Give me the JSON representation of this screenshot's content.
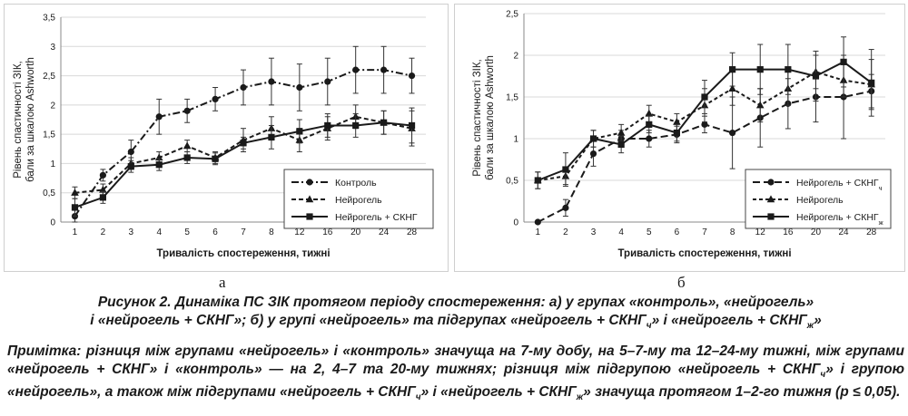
{
  "figure": {
    "caption_line1": "Рисунок 2. Динаміка ПС ЗІК протягом періоду спостереження: а) у групах «контроль», «нейрогель»",
    "caption_line2": "і «нейрогель + СКНГ»; б) у групі «нейрогель» та підгрупах «нейрогель + СКНГч» і «нейрогель + СКНГж»",
    "note": "Примітка: різниця між групами «нейрогель» і «контроль» значуща на 7-му добу, на 5–7-му та 12–24-му тижні, між групами «нейрогель + СКНГ» і «контроль» — на 2, 4–7 та 20-му тижнях; різниця між підгрупою «нейрогель + СКНГч» і групою «нейрогель», а також між підгрупами «нейрогель + СКНГч» і «нейрогель + СКНГж» значуща протягом 1–2-го тижня (p ≤ 0,05)."
  },
  "chart_data": [
    {
      "panel_label": "а",
      "type": "line",
      "x": [
        "1",
        "2",
        "3",
        "4",
        "5",
        "6",
        "7",
        "8",
        "12",
        "16",
        "20",
        "24",
        "28"
      ],
      "ylim": [
        0,
        3.5
      ],
      "yticks": [
        "0",
        "0,5",
        "1",
        "1,5",
        "2",
        "2,5",
        "3",
        "3,5"
      ],
      "xlabel": "Тривалість спостереження, тижні",
      "ylabel_line1": "Рівень спастичності ЗІК,",
      "ylabel_line2": "бали за шкалою Ashworth",
      "legend_position": "bottom-right",
      "series": [
        {
          "name": "Контроль",
          "marker": "circle",
          "dash": "8,3,2,3",
          "values": [
            0.1,
            0.8,
            1.2,
            1.8,
            1.9,
            2.1,
            2.3,
            2.4,
            2.3,
            2.4,
            2.6,
            2.6,
            2.5
          ],
          "errors": [
            0.1,
            0.1,
            0.2,
            0.3,
            0.2,
            0.2,
            0.3,
            0.4,
            0.4,
            0.4,
            0.4,
            0.4,
            0.3
          ]
        },
        {
          "name": "Нейрогель",
          "marker": "triangle",
          "dash": "5,3",
          "values": [
            0.5,
            0.55,
            1.0,
            1.1,
            1.3,
            1.1,
            1.4,
            1.6,
            1.4,
            1.6,
            1.8,
            1.7,
            1.6
          ],
          "errors": [
            0.1,
            0.1,
            0.1,
            0.1,
            0.1,
            0.1,
            0.2,
            0.2,
            0.2,
            0.2,
            0.2,
            0.2,
            0.3
          ]
        },
        {
          "name": "Нейрогель + СКНГ",
          "marker": "square",
          "dash": "",
          "values": [
            0.25,
            0.42,
            0.95,
            0.98,
            1.1,
            1.08,
            1.35,
            1.45,
            1.55,
            1.65,
            1.65,
            1.7,
            1.65
          ],
          "errors": [
            0.15,
            0.1,
            0.1,
            0.1,
            0.1,
            0.1,
            0.1,
            0.2,
            0.2,
            0.2,
            0.2,
            0.2,
            0.3
          ]
        }
      ]
    },
    {
      "panel_label": "б",
      "type": "line",
      "x": [
        "1",
        "2",
        "3",
        "4",
        "5",
        "6",
        "7",
        "8",
        "12",
        "16",
        "20",
        "24",
        "28"
      ],
      "ylim": [
        0,
        2.5
      ],
      "yticks": [
        "0",
        "0,5",
        "1",
        "1,5",
        "2",
        "2,5"
      ],
      "xlabel": "Тривалість спостереження, тижні",
      "ylabel_line1": "Рівень спастичності ЗІК,",
      "ylabel_line2": "бали за шкалою Ashworth",
      "legend_position": "bottom-right",
      "series": [
        {
          "name": "Нейрогель + СКНГ",
          "name_sub": "ч",
          "marker": "circle",
          "dash": "8,4",
          "values": [
            0.0,
            0.17,
            0.82,
            1.0,
            1.0,
            1.05,
            1.17,
            1.07,
            1.25,
            1.42,
            1.5,
            1.5,
            1.57
          ],
          "errors": [
            0.0,
            0.1,
            0.15,
            0.1,
            0.1,
            0.1,
            0.1,
            0.43,
            0.35,
            0.3,
            0.3,
            0.5,
            0.2
          ]
        },
        {
          "name": "Нейрогель",
          "marker": "triangle",
          "dash": "4,3",
          "values": [
            0.5,
            0.55,
            1.0,
            1.07,
            1.3,
            1.2,
            1.4,
            1.6,
            1.4,
            1.6,
            1.8,
            1.7,
            1.65
          ],
          "errors": [
            0.1,
            0.1,
            0.1,
            0.1,
            0.1,
            0.1,
            0.2,
            0.2,
            0.2,
            0.2,
            0.2,
            0.2,
            0.3
          ]
        },
        {
          "name": "Нейрогель + СКНГ",
          "name_sub": "ж",
          "marker": "square",
          "dash": "",
          "values": [
            0.5,
            0.63,
            1.0,
            0.93,
            1.17,
            1.07,
            1.5,
            1.83,
            1.83,
            1.83,
            1.75,
            1.92,
            1.67
          ],
          "errors": [
            0.1,
            0.2,
            0.1,
            0.1,
            0.1,
            0.1,
            0.2,
            0.2,
            0.3,
            0.3,
            0.3,
            0.3,
            0.4
          ]
        }
      ]
    }
  ]
}
